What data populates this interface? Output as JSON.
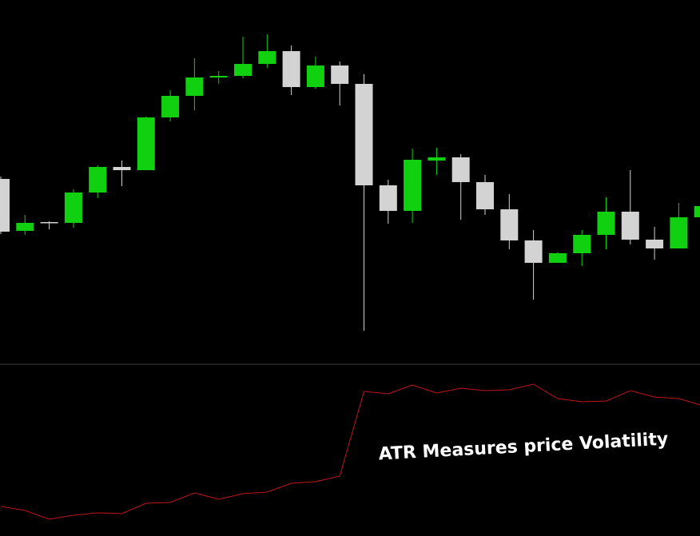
{
  "chart_data": [
    {
      "type": "candlestick",
      "open": [
        232,
        167,
        178,
        177,
        215,
        247,
        243,
        309,
        336,
        359,
        361,
        376,
        392,
        347,
        374,
        351,
        224,
        192,
        255,
        259,
        228,
        194,
        155,
        127,
        139,
        162,
        191,
        156,
        145,
        184
      ],
      "high": [
        235,
        187,
        179,
        219,
        249,
        255,
        310,
        343,
        383,
        367,
        410,
        413,
        399,
        385,
        379,
        363,
        231,
        270,
        271,
        263,
        237,
        213,
        168,
        140,
        168,
        209,
        243,
        172,
        202,
        198
      ],
      "low": [
        163,
        162,
        169,
        171,
        208,
        223,
        243,
        304,
        318,
        351,
        358,
        371,
        337,
        345,
        324,
        42,
        176,
        177,
        237,
        181,
        187,
        144,
        81,
        127,
        123,
        144,
        150,
        131,
        145,
        184
      ],
      "close": [
        166,
        177,
        177,
        215,
        247,
        243,
        309,
        336,
        359,
        361,
        376,
        392,
        347,
        374,
        351,
        224,
        192,
        256,
        259,
        228,
        194,
        155,
        127,
        139,
        162,
        191,
        156,
        145,
        184,
        198
      ],
      "up_color": "#10d010",
      "down_color": "#d3d3d3",
      "ylim": [
        0,
        456
      ]
    },
    {
      "type": "line",
      "values": [
        37,
        32,
        21,
        26,
        29,
        28,
        41,
        42,
        54,
        46,
        53,
        55,
        66,
        68,
        75,
        181,
        178,
        189,
        179,
        185,
        182,
        183,
        190,
        172,
        168,
        169,
        182,
        174,
        172,
        163
      ],
      "color": "#c0141a",
      "ylim": [
        0,
        215
      ],
      "annotation": "ATR Measures price Volatility"
    }
  ]
}
